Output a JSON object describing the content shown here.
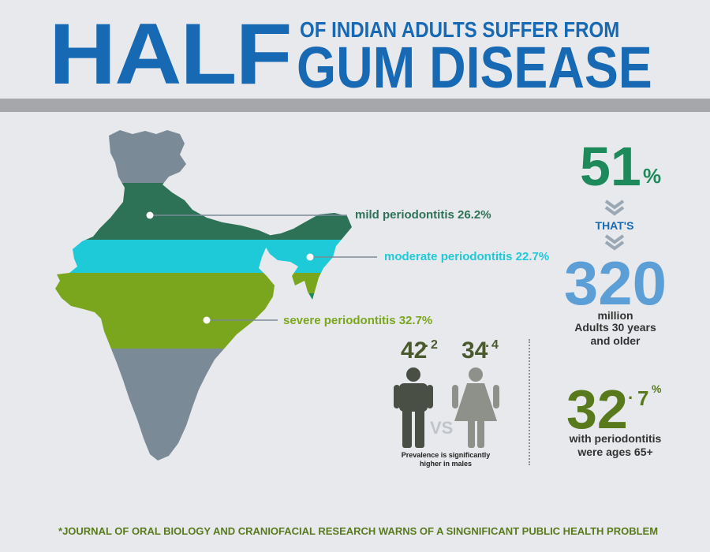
{
  "header": {
    "title_big": "HALF",
    "title_small": "OF INDIAN ADULTS SUFFER FROM",
    "title_large": "GUM DISEASE"
  },
  "map": {
    "mild_label": "mild periodontitis 26.2%",
    "moderate_label": "moderate periodontitis 22.7%",
    "severe_label": "severe periodontitis 32.7%"
  },
  "stats": {
    "percent_value": "51",
    "percent_sign": "%",
    "thats": "THAT'S",
    "count_value": "320",
    "count_unit": "million",
    "count_desc_1": "Adults 30 years",
    "count_desc_2": "and older",
    "elderly_value": "32",
    "elderly_decimal": "7",
    "elderly_percent": "%",
    "elderly_desc_1": "with periodontitis",
    "elderly_desc_2": "were ages 65+"
  },
  "gender": {
    "male_value": "42",
    "male_decimal": "2",
    "female_value": "34",
    "female_decimal": "4",
    "vs": "VS",
    "note_1": "Prevalence is significantly",
    "note_2": "higher in males"
  },
  "footer": {
    "asterisk": "*",
    "text": "JOURNAL OF ORAL BIOLOGY AND CRANIOFACIAL RESEARCH WARNS OF A SINGNIFICANT PUBLIC HEALTH PROBLEM"
  },
  "colors": {
    "blue": "#1769b4",
    "dark_green": "#2d7257",
    "cyan": "#1ecad8",
    "lime": "#7aa61d",
    "slate": "#7a8a97",
    "olive": "#587a1c",
    "light_blue": "#5b9fd6",
    "teal_green": "#1e8a5c"
  }
}
